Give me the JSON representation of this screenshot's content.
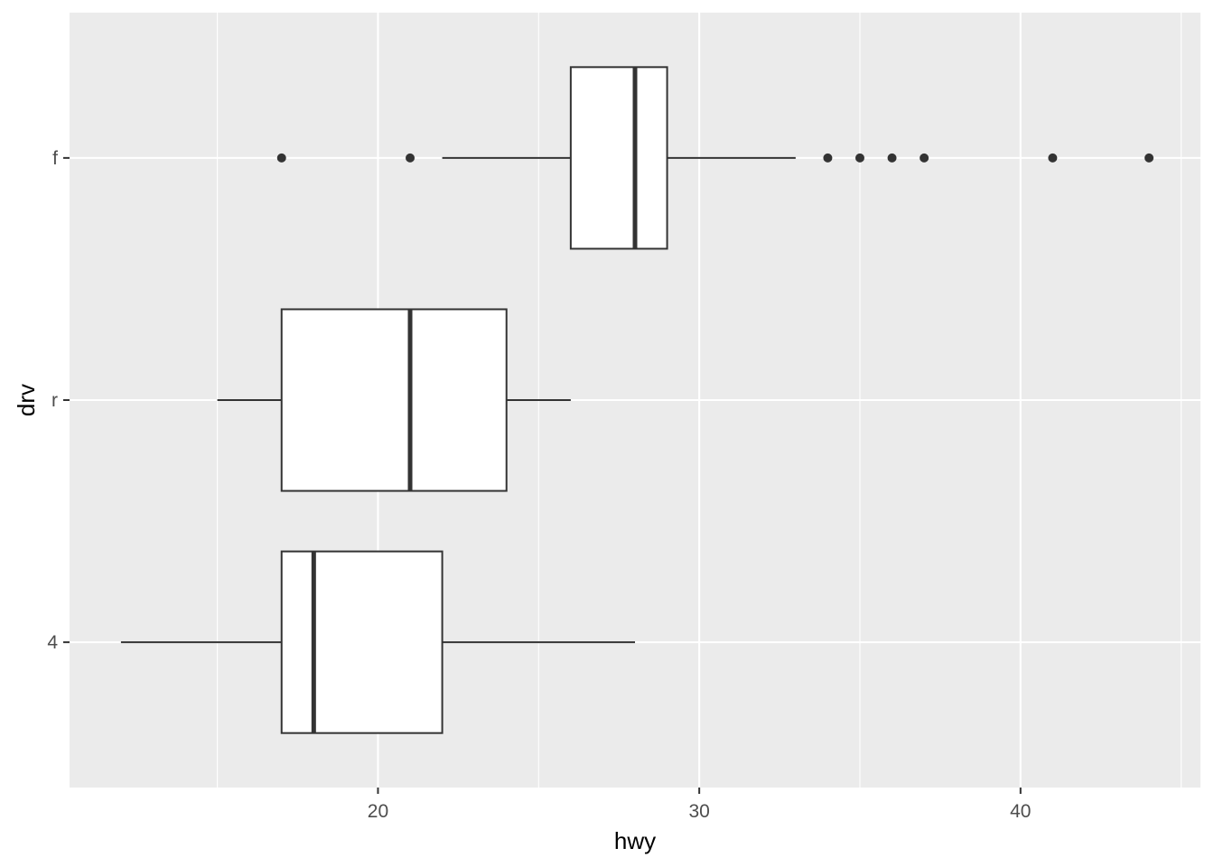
{
  "chart_data": {
    "type": "boxplot",
    "orientation": "horizontal",
    "xlabel": "hwy",
    "ylabel": "drv",
    "xlim": [
      10.4,
      45.6
    ],
    "x_ticks": [
      20,
      30,
      40
    ],
    "x_minor_ticks": [
      15,
      25,
      35,
      45
    ],
    "categories": [
      "4",
      "r",
      "f"
    ],
    "grid": true,
    "legend": "none",
    "colors": {
      "panel_background": "#EBEBEB",
      "grid": "#FFFFFF",
      "box_fill": "#FFFFFF",
      "box_stroke": "#333333",
      "tick_text": "#4D4D4D",
      "title_text": "#000000"
    },
    "boxes": [
      {
        "category": "4",
        "whisker_low": 12,
        "q1": 17,
        "median": 18,
        "q3": 22,
        "whisker_high": 28,
        "outliers": []
      },
      {
        "category": "r",
        "whisker_low": 15,
        "q1": 17,
        "median": 21,
        "q3": 24,
        "whisker_high": 26,
        "outliers": []
      },
      {
        "category": "f",
        "whisker_low": 22,
        "q1": 26,
        "median": 28,
        "q3": 29,
        "whisker_high": 33,
        "outliers": [
          17,
          21,
          34,
          35,
          36,
          37,
          41,
          44
        ]
      }
    ]
  }
}
